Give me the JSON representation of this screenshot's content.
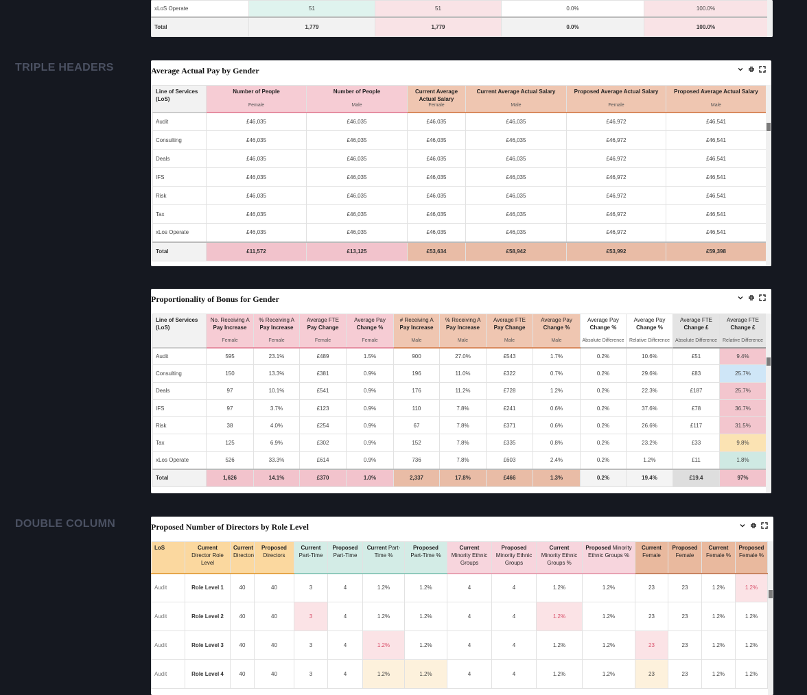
{
  "sections": [
    "TRIPLE HEADERS",
    "DOUBLE COLUMN"
  ],
  "tables": [
    {
      "rows": [
        [
          "xLoS Operate",
          "51",
          "51",
          "0.0%",
          "100.0%"
        ]
      ],
      "total": [
        "Total",
        "1,779",
        "1,779",
        "0.0%",
        "100.0%"
      ]
    },
    {
      "title": "Average Actual Pay by Gender",
      "header": [
        {
          "strong": "Line of Services (LoS)"
        },
        {
          "strong": "Number of People",
          "sub": "Female"
        },
        {
          "strong": "Number of People",
          "sub": "Male"
        },
        {
          "strong": "Current Average Actual Salary",
          "sub": "Female"
        },
        {
          "strong": "Current Average Actual Salary",
          "sub": "Male"
        },
        {
          "strong": "Proposed Average Actual Salary",
          "sub": "Female"
        },
        {
          "strong": "Proposed Average Actual Salary",
          "sub": "Male"
        }
      ],
      "rows": [
        [
          "Audit",
          "£46,035",
          "£46,035",
          "£46,035",
          "£46,035",
          "£46,972",
          "£46,541"
        ],
        [
          "Consulting",
          "£46,035",
          "£46,035",
          "£46,035",
          "£46,035",
          "£46,972",
          "£46,541"
        ],
        [
          "Deals",
          "£46,035",
          "£46,035",
          "£46,035",
          "£46,035",
          "£46,972",
          "£46,541"
        ],
        [
          "IFS",
          "£46,035",
          "£46,035",
          "£46,035",
          "£46,035",
          "£46,972",
          "£46,541"
        ],
        [
          "Risk",
          "£46,035",
          "£46,035",
          "£46,035",
          "£46,035",
          "£46,972",
          "£46,541"
        ],
        [
          "Tax",
          "£46,035",
          "£46,035",
          "£46,035",
          "£46,035",
          "£46,972",
          "£46,541"
        ],
        [
          "xLos Operate",
          "£46,035",
          "£46,035",
          "£46,035",
          "£46,035",
          "£46,972",
          "£46,541"
        ]
      ],
      "total": [
        "Total",
        "£11,572",
        "£13,125",
        "£53,634",
        "£58,942",
        "£53,992",
        "£59,398"
      ]
    },
    {
      "title": "Proportionality of Bonus for Gender",
      "header": [
        {
          "strong": "Line of Services (LoS)"
        },
        {
          "label": "No. Receiving A",
          "strong": "Pay Increase",
          "sub": "Female"
        },
        {
          "label": "% Receiving A",
          "strong": "Pay Increase",
          "sub": "Female"
        },
        {
          "label": "Average FTE",
          "strong": "Pay Change",
          "sub": "Female"
        },
        {
          "label": "Average Pay",
          "strong": "Change %",
          "sub": "Female"
        },
        {
          "label": "# Receiving A",
          "strong": "Pay Increase",
          "sub": "Male"
        },
        {
          "label": "% Receiving A",
          "strong": "Pay Increase",
          "sub": "Male"
        },
        {
          "label": "Average FTE",
          "strong": "Pay Change",
          "sub": "Male"
        },
        {
          "label": "Average Pay",
          "strong": "Change %",
          "sub": "Male"
        },
        {
          "label": "Average Pay",
          "strong": "Change %",
          "sub": "Absolute Difference"
        },
        {
          "label": "Average Pay",
          "strong": "Change %",
          "sub": "Relative Difference"
        },
        {
          "label": "Average FTE",
          "strong": "Change £",
          "sub": "Absolute Difference"
        },
        {
          "label": "Average FTE",
          "strong": "Change £",
          "sub": "Relative Difference"
        }
      ],
      "rows": [
        [
          "Audit",
          "595",
          "23.1%",
          "£489",
          "1.5%",
          "900",
          "27.0%",
          "£543",
          "1.7%",
          "0.2%",
          "10.6%",
          "£51",
          "9.4%"
        ],
        [
          "Consulting",
          "150",
          "13.3%",
          "£381",
          "0.9%",
          "196",
          "11.0%",
          "£322",
          "0.7%",
          "0.2%",
          "29.6%",
          "£83",
          "25.7%"
        ],
        [
          "Deals",
          "97",
          "10.1%",
          "£541",
          "0.9%",
          "176",
          "11.2%",
          "£728",
          "1.2%",
          "0.2%",
          "22.3%",
          "£187",
          "25.7%"
        ],
        [
          "IFS",
          "97",
          "3.7%",
          "£123",
          "0.9%",
          "110",
          "7.8%",
          "£241",
          "0.6%",
          "0.2%",
          "37.6%",
          "£78",
          "36.7%"
        ],
        [
          "Risk",
          "38",
          "4.0%",
          "£254",
          "0.9%",
          "67",
          "7.8%",
          "£371",
          "0.6%",
          "0.2%",
          "26.6%",
          "£117",
          "31.5%"
        ],
        [
          "Tax",
          "125",
          "6.9%",
          "£302",
          "0.9%",
          "152",
          "7.8%",
          "£335",
          "0.8%",
          "0.2%",
          "23.2%",
          "£33",
          "9.8%"
        ],
        [
          "xLos Operate",
          "526",
          "33.3%",
          "£614",
          "0.9%",
          "736",
          "7.8%",
          "£603",
          "2.4%",
          "0.2%",
          "1.2%",
          "£11",
          "1.8%"
        ]
      ],
      "total": [
        "Total",
        "1,626",
        "14.1%",
        "£370",
        "1.0%",
        "2,337",
        "17.8%",
        "£466",
        "1.3%",
        "0.2%",
        "19.4%",
        "£19.4",
        "97%"
      ]
    },
    {
      "title": "Proposed Number of Directors by Role Level",
      "header": [
        {
          "strong": "LoS"
        },
        {
          "strong": "Current",
          "label": "Director Role Level"
        },
        {
          "strong": "Current",
          "label": "Directors"
        },
        {
          "strong": "Proposed",
          "label": "Directors"
        },
        {
          "strong": "Current",
          "label": "Part-Time"
        },
        {
          "strong": "Proposed",
          "label": "Part-Time"
        },
        {
          "strong": "Current",
          "label": "Part-Time %"
        },
        {
          "strong": "Proposed",
          "label": "Part-Time %"
        },
        {
          "strong": "Current",
          "label": "Minority Ethnic Groups"
        },
        {
          "strong": "Proposed",
          "label": "Minority Ethnic Groups"
        },
        {
          "strong": "Current",
          "label": "Minority Ethnic Groups %"
        },
        {
          "strong": "Proposed",
          "label": "Minority Ethnic Groups %"
        },
        {
          "strong": "Current",
          "label": "Female"
        },
        {
          "strong": "Proposed",
          "label": "Female"
        },
        {
          "strong": "Current",
          "label": "Female %"
        },
        {
          "strong": "Proposed",
          "label": "Female %"
        }
      ],
      "rows": [
        [
          "Audit",
          "Role Level 1",
          "40",
          "40",
          "3",
          "4",
          "1.2%",
          "1.2%",
          "4",
          "4",
          "1.2%",
          "1.2%",
          "23",
          "23",
          "1.2%",
          "1.2%"
        ],
        [
          "Audit",
          "Role Level 2",
          "40",
          "40",
          "3",
          "4",
          "1.2%",
          "1.2%",
          "4",
          "4",
          "1.2%",
          "1.2%",
          "23",
          "23",
          "1.2%",
          "1.2%"
        ],
        [
          "Audit",
          "Role Level 3",
          "40",
          "40",
          "3",
          "4",
          "1.2%",
          "1.2%",
          "4",
          "4",
          "1.2%",
          "1.2%",
          "23",
          "23",
          "1.2%",
          "1.2%"
        ],
        [
          "Audit",
          "Role Level 4",
          "40",
          "40",
          "3",
          "4",
          "1.2%",
          "1.2%",
          "4",
          "4",
          "1.2%",
          "1.2%",
          "23",
          "23",
          "1.2%",
          "1.2%"
        ]
      ]
    }
  ]
}
